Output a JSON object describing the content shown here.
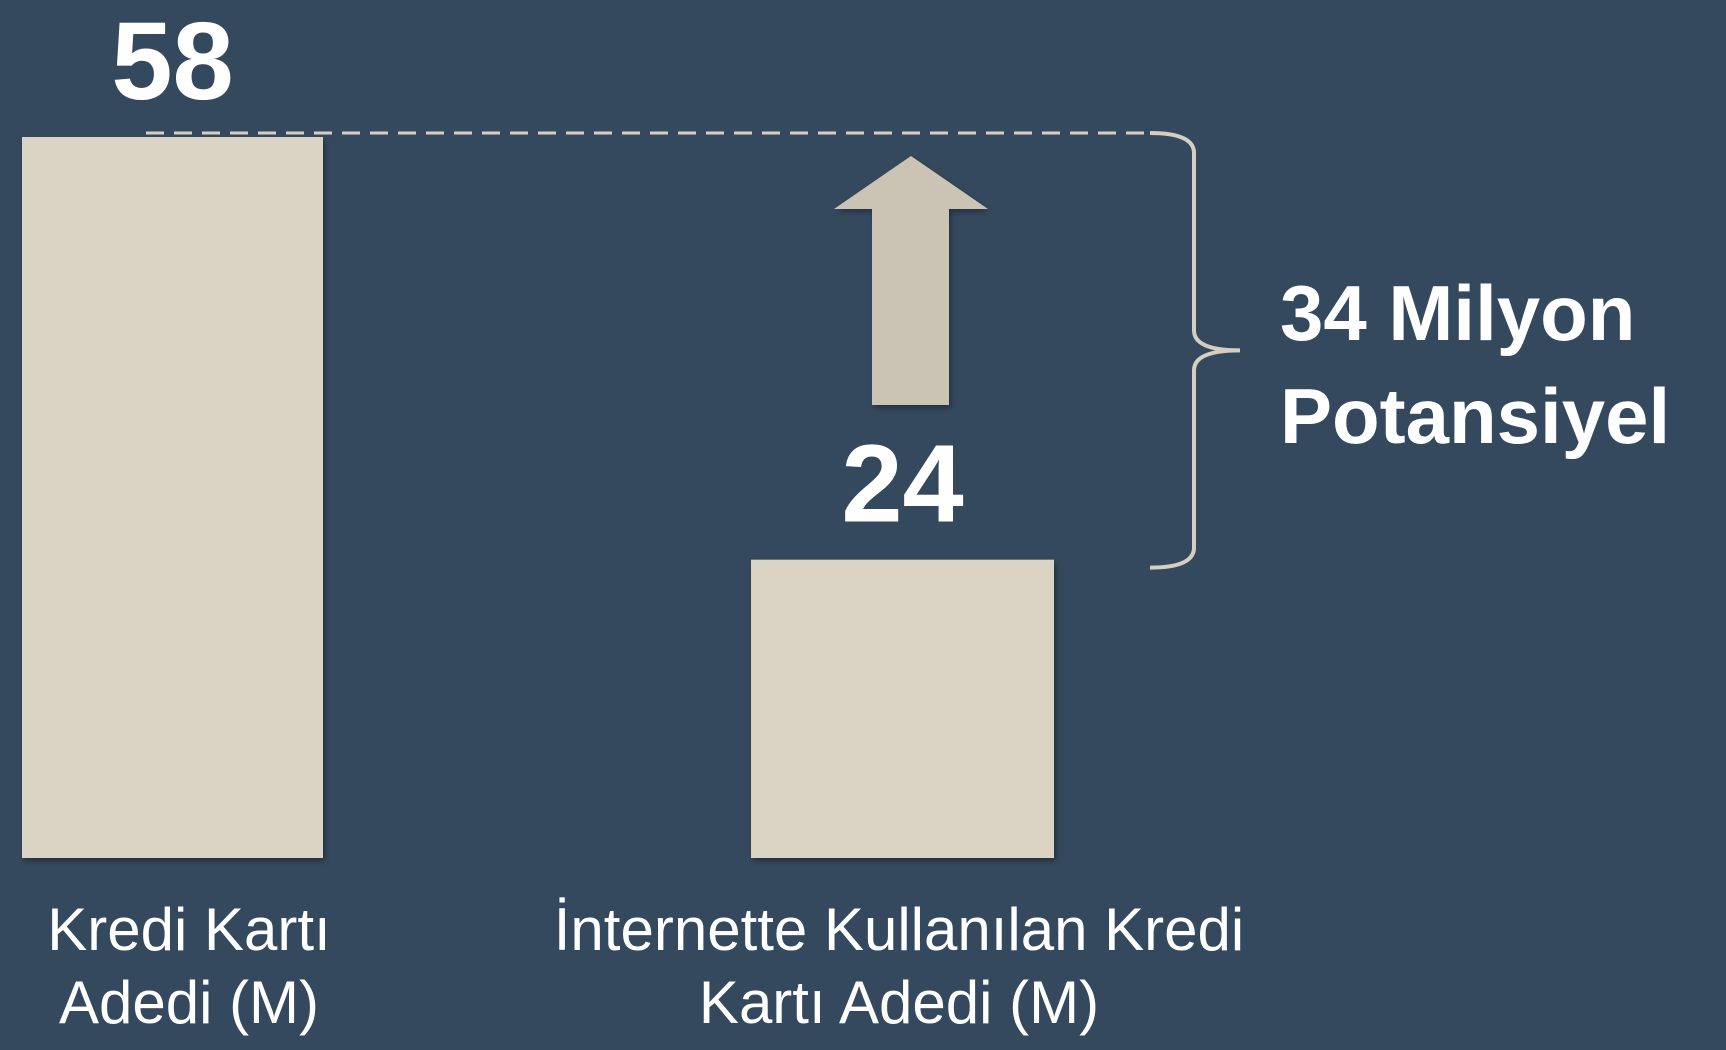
{
  "chart_data": {
    "type": "bar",
    "categories": [
      "Kredi Kartı\nAdedi (M)",
      "İnternette Kullanılan Kredi\nKartı Adedi (M)"
    ],
    "values": [
      58,
      24
    ],
    "color": "#dbd4c4",
    "annotation": "34 Milyon\nPotansiyel"
  }
}
